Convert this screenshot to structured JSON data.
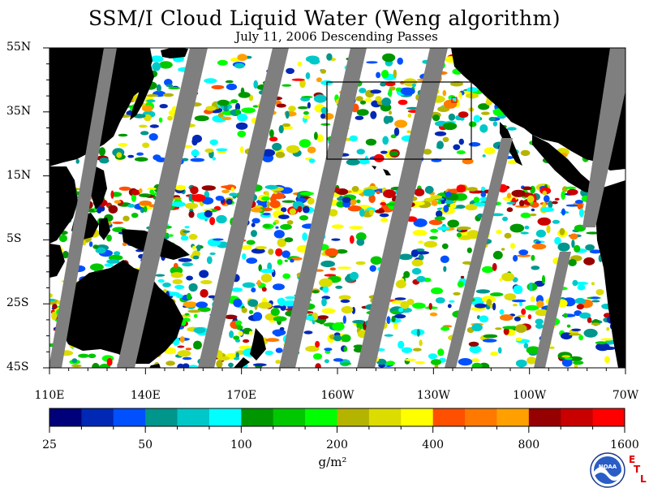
{
  "map": {
    "title": "SSM/I Cloud Liquid Water (Weng algorithm)",
    "subtitle": "July 11, 2006  Descending Passes",
    "lat_labels": [
      "55N",
      "35N",
      "15N",
      "5S",
      "25S",
      "45S"
    ],
    "lon_labels": [
      "110E",
      "140E",
      "170E",
      "160W",
      "130W",
      "100W",
      "70W"
    ]
  },
  "colorbar": {
    "labels": [
      "25",
      "50",
      "100",
      "200",
      "400",
      "800",
      "1600"
    ],
    "units": "g/m²",
    "colors": [
      "#00007a",
      "#0028b4",
      "#0050ff",
      "#00968c",
      "#00c8c8",
      "#00ffff",
      "#009600",
      "#00c800",
      "#00ff00",
      "#b4b400",
      "#dcdc00",
      "#ffff00",
      "#ff5000",
      "#ff7800",
      "#ffa000",
      "#960000",
      "#c80000",
      "#ff0000"
    ]
  },
  "logo": {
    "agency_text": "NOAA",
    "letters": [
      "E",
      "T",
      "L"
    ]
  },
  "colors": {
    "land": "#000000",
    "gap": "#7f7f7f",
    "ocean": "#ffffff"
  }
}
